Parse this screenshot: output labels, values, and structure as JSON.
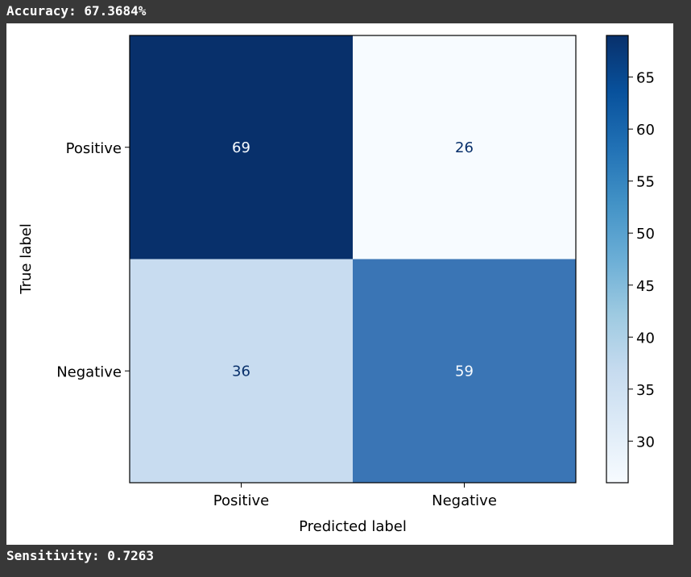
{
  "output": {
    "accuracy_line": "Accuracy: 67.3684%",
    "sensitivity_line": "Sensitivity: 0.7263"
  },
  "chart_data": {
    "type": "heatmap",
    "title": "",
    "xlabel": "Predicted label",
    "ylabel": "True label",
    "x_categories": [
      "Positive",
      "Negative"
    ],
    "y_categories": [
      "Positive",
      "Negative"
    ],
    "matrix": [
      [
        69,
        26
      ],
      [
        36,
        59
      ]
    ],
    "colormap": "Blues",
    "colorbar": {
      "min": 26,
      "max": 69,
      "ticks": [
        30,
        35,
        40,
        45,
        50,
        55,
        60,
        65
      ]
    },
    "colors": {
      "cell_69": "#08306b",
      "cell_26": "#f7fbff",
      "cell_36": "#c8dcf0",
      "cell_59": "#3a75b5",
      "text_dark_cell": "#f7fbff",
      "text_light_cell": "#08306b"
    }
  }
}
